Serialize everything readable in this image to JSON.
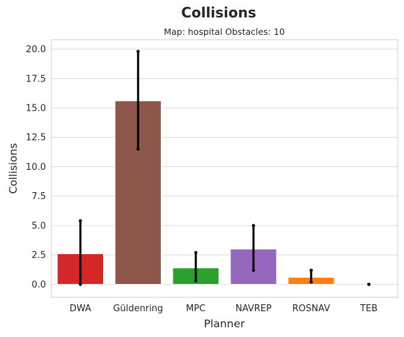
{
  "chart_data": {
    "type": "bar",
    "title": "Collisions",
    "subtitle": "Map: hospital Obstacles: 10",
    "xlabel": "Planner",
    "ylabel": "Collisions",
    "categories": [
      "DWA",
      "Güldenring",
      "MPC",
      "NAVREP",
      "ROSNAV",
      "TEB"
    ],
    "values": [
      2.6,
      15.6,
      1.4,
      3.0,
      0.6,
      0.0
    ],
    "error_low": [
      0.0,
      11.5,
      0.3,
      1.2,
      0.2,
      0.0
    ],
    "error_high": [
      5.4,
      19.8,
      2.7,
      5.0,
      1.2,
      0.0
    ],
    "colors": [
      "#d62728",
      "#8c564b",
      "#2ca02c",
      "#9467bd",
      "#ff7f0e",
      "#1f77b4"
    ],
    "ylim": [
      -1.1,
      20.8
    ],
    "yticks": [
      "0.0",
      "2.5",
      "5.0",
      "7.5",
      "10.0",
      "12.5",
      "15.0",
      "17.5",
      "20.0"
    ],
    "grid": true,
    "legend": "none"
  }
}
